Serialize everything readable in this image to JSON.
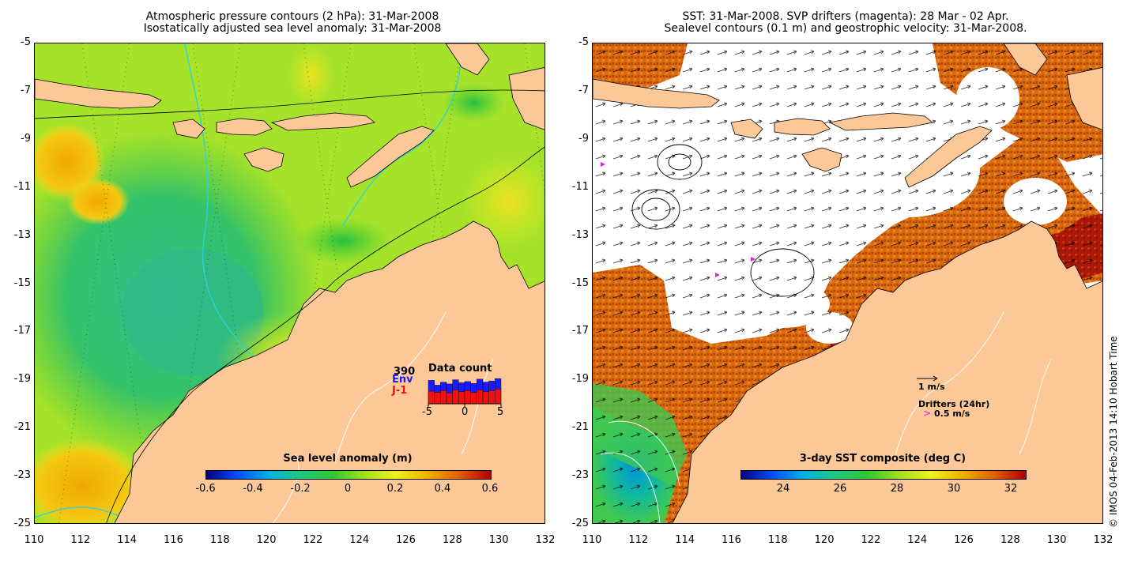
{
  "left": {
    "title_line1": "Atmospheric pressure contours (2 hPa): 31-Mar-2008",
    "title_line2": "Isostatically adjusted sea level anomaly: 31-Mar-2008",
    "colorbar_title": "Sea level anomaly (m)",
    "colorbar_ticks": [
      "-0.6",
      "-0.4",
      "-0.2",
      "0",
      "0.2",
      "0.4",
      "0.6"
    ],
    "data_count": {
      "title": "Data count",
      "max_value": "390",
      "env_label": "Env",
      "j1_label": "J-1",
      "x_ticks": [
        "-5",
        "0",
        "5"
      ],
      "env_color": "#1a1aff",
      "j1_color": "#ee1111",
      "env_values": [
        0.78,
        0.62,
        0.72,
        0.66,
        0.8,
        0.7,
        0.74,
        0.68,
        0.82,
        0.72,
        0.76,
        0.84
      ],
      "j1_values": [
        0.42,
        0.38,
        0.44,
        0.36,
        0.46,
        0.4,
        0.44,
        0.38,
        0.46,
        0.4,
        0.44,
        0.48
      ]
    }
  },
  "right": {
    "title_line1": "SST: 31-Mar-2008. SVP drifters (magenta): 28 Mar - 02 Apr.",
    "title_line2": "Sealevel contours (0.1 m) and geostrophic velocity: 31-Mar-2008.",
    "colorbar_title": "3-day SST composite (deg C)",
    "colorbar_ticks": [
      "24",
      "26",
      "28",
      "30",
      "32"
    ],
    "legend_velocity": "1 m/s",
    "legend_drifters": "Drifters (24hr)",
    "legend_drifter_speed": "0.5 m/s",
    "drifter_marker": ">"
  },
  "axes": {
    "y_ticks": [
      "-5",
      "-7",
      "-9",
      "-11",
      "-13",
      "-15",
      "-17",
      "-19",
      "-21",
      "-23",
      "-25"
    ],
    "x_ticks": [
      "110",
      "112",
      "114",
      "116",
      "118",
      "120",
      "122",
      "124",
      "126",
      "128",
      "130",
      "132"
    ]
  },
  "credit": "© IMOS 04-Feb-2013 14:10 Hobart Time",
  "colors": {
    "land": "#fcc898",
    "sla_scale": [
      "#00007f",
      "#0060ff",
      "#00c8c8",
      "#20c040",
      "#a0e020",
      "#f0f020",
      "#f0a000",
      "#e05000",
      "#a00000"
    ],
    "sst_scale": [
      "#00007f",
      "#0060ff",
      "#00c8c8",
      "#20c040",
      "#a0e020",
      "#f0f020",
      "#f0a000",
      "#e05000",
      "#a00000"
    ]
  }
}
